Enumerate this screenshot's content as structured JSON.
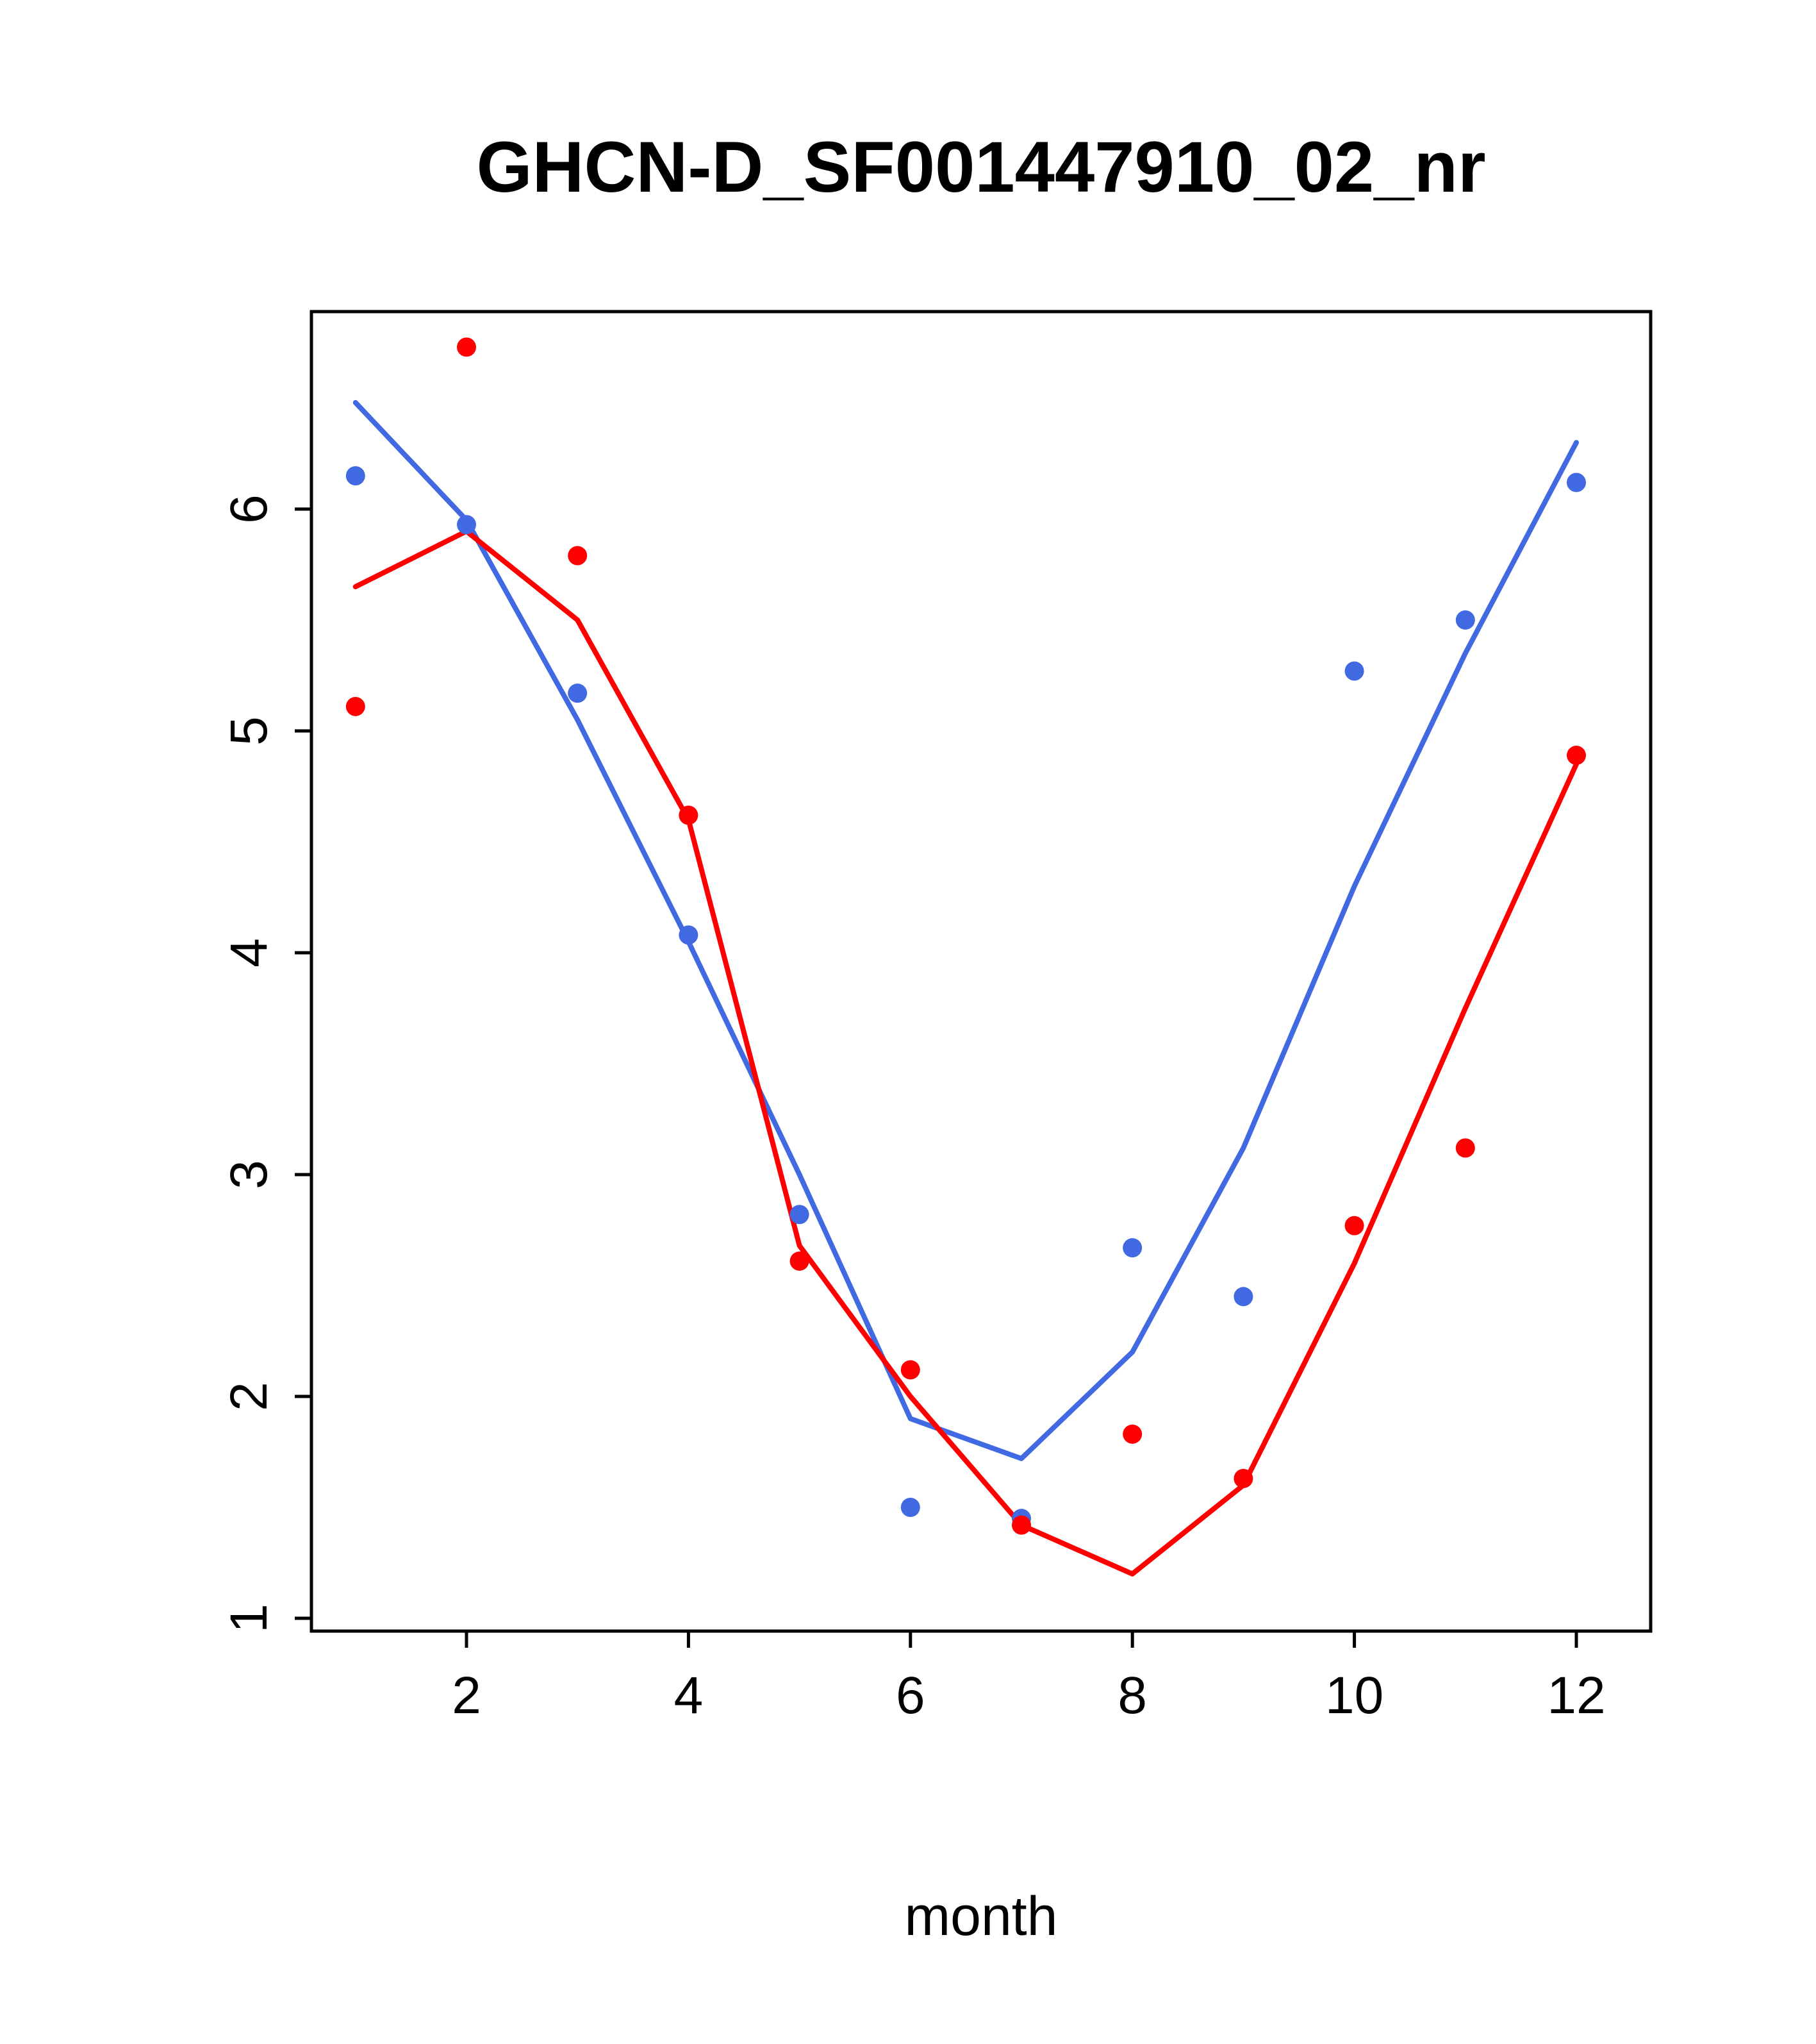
{
  "page": {
    "background": "#ffffff"
  },
  "chart_data": {
    "type": "line",
    "title": "GHCN-D_SF001447910_02_nr",
    "xlabel": "month",
    "ylabel": "",
    "grid": false,
    "legend": "none",
    "frame_color": "#000000",
    "xlim": [
      0.56,
      12.67
    ],
    "ylim": [
      0.94,
      6.89
    ],
    "xticks": [
      2,
      4,
      6,
      8,
      10,
      12
    ],
    "yticks": [
      1,
      2,
      3,
      4,
      5,
      6
    ],
    "x": [
      1,
      2,
      3,
      4,
      5,
      6,
      7,
      8,
      9,
      10,
      11,
      12
    ],
    "series": [
      {
        "name": "series-blue-points",
        "style": "points",
        "color": "#4169E1",
        "values": [
          6.15,
          5.93,
          5.17,
          4.08,
          2.82,
          1.5,
          1.45,
          2.67,
          2.45,
          5.27,
          5.5,
          6.12
        ]
      },
      {
        "name": "series-blue-smooth-line",
        "style": "line",
        "color": "#4169E1",
        "values": [
          6.48,
          5.95,
          5.05,
          4.05,
          3.0,
          1.9,
          1.72,
          2.2,
          3.12,
          4.3,
          5.35,
          6.3
        ]
      },
      {
        "name": "series-red-points",
        "style": "points",
        "color": "#FF0000",
        "values": [
          5.11,
          6.73,
          5.79,
          4.62,
          2.61,
          2.12,
          1.42,
          1.83,
          1.63,
          2.77,
          3.12,
          4.89
        ]
      },
      {
        "name": "series-red-smooth-line",
        "style": "line",
        "color": "#FF0000",
        "values": [
          5.65,
          5.9,
          5.5,
          4.6,
          2.68,
          2.0,
          1.42,
          1.2,
          1.6,
          2.6,
          3.75,
          4.85
        ]
      }
    ]
  }
}
